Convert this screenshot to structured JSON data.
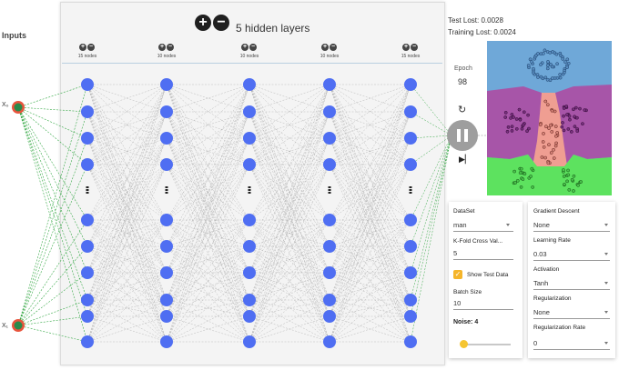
{
  "inputs": {
    "label": "Inputs",
    "x1": "X₀",
    "x2": "X₁"
  },
  "network": {
    "add_layer_symbol": "+",
    "remove_layer_symbol": "−",
    "layers_title": "5 hidden layers",
    "layer_symbol_plus": "+",
    "layer_symbol_minus": "−",
    "layers": [
      {
        "caption": "15 nodes"
      },
      {
        "caption": "10 nodes"
      },
      {
        "caption": "10 nodes"
      },
      {
        "caption": "10 nodes"
      },
      {
        "caption": "15 nodes"
      }
    ]
  },
  "metrics": {
    "test_loss": "Test Lost: 0.0028",
    "training_loss": "Training Lost: 0.0024"
  },
  "epoch": {
    "label": "Epoch",
    "value": "98"
  },
  "dataset": {
    "dataset_label": "DataSet",
    "dataset_value": "man",
    "kfold_label": "K-Fold Cross Val...",
    "kfold_value": "5",
    "show_test_label": "Show Test Data",
    "show_test_checked": true,
    "batch_label": "Batch  Size",
    "batch_value": "10",
    "noise_label": "Noise: 4",
    "noise_level": 0.04
  },
  "training": {
    "gd_label": "Gradient Descent",
    "gd_value": "None",
    "lr_label": "Learning Rate",
    "lr_value": "0.03",
    "activation_label": "Activation",
    "activation_value": "Tanh",
    "reg_label": "Regularization",
    "reg_value": "None",
    "reg_rate_label": "Regularization Rate",
    "reg_rate_value": "0"
  },
  "colors": {
    "node": "#4f6ef2",
    "input_node_outer": "#e8543d",
    "input_node_inner": "#2a8a4a",
    "positive_weight": "#35a845",
    "neutral_weight": "#a0a0a0",
    "accent": "#f5b52a",
    "region_blue": "#6fa8d8",
    "region_purple": "#a755a8",
    "region_pink": "#ef9e92",
    "region_green": "#5de25f"
  }
}
